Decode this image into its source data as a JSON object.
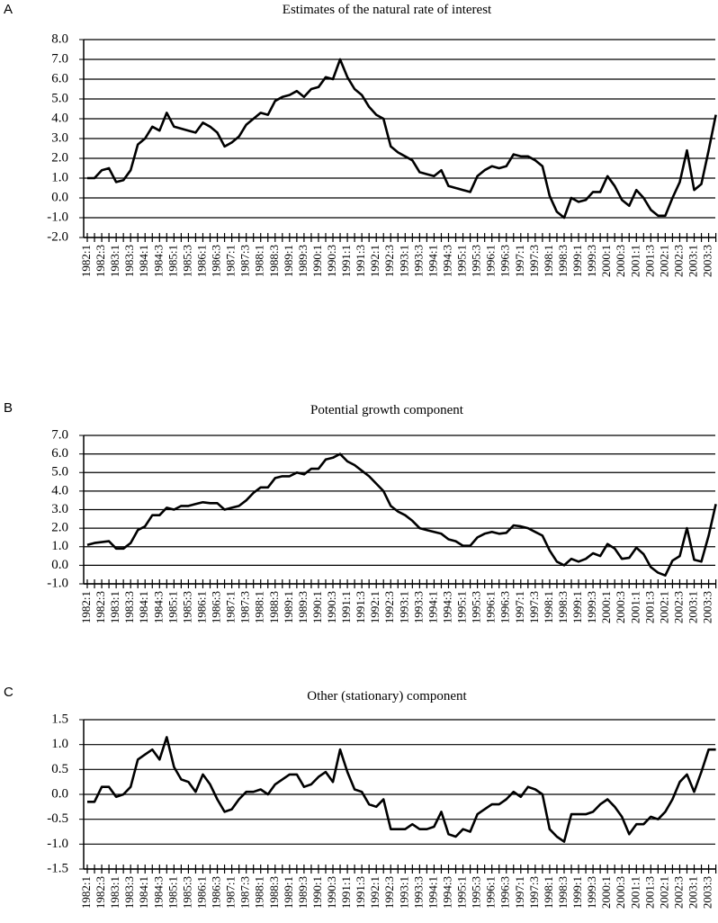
{
  "chart_data": [
    {
      "type": "line",
      "panel_label": "A",
      "title": "Estimates of the natural rate of interest",
      "color": "#000000",
      "grid": true,
      "categories": [
        "1982:1",
        null,
        "1982:3",
        null,
        "1983:1",
        null,
        "1983:3",
        null,
        "1984:1",
        null,
        "1984:3",
        null,
        "1985:1",
        null,
        "1985:3",
        null,
        "1986:1",
        null,
        "1986:3",
        null,
        "1987:1",
        null,
        "1987:3",
        null,
        "1988:1",
        null,
        "1988:3",
        null,
        "1989:1",
        null,
        "1989:3",
        null,
        "1990:1",
        null,
        "1990:3",
        null,
        "1991:1",
        null,
        "1991:3",
        null,
        "1992:1",
        null,
        "1992:3",
        null,
        "1993:1",
        null,
        "1993:3",
        null,
        "1994:1",
        null,
        "1994:3",
        null,
        "1995:1",
        null,
        "1995:3",
        null,
        "1996:1",
        null,
        "1996:3",
        null,
        "1997:1",
        null,
        "1997:3",
        null,
        "1998:1",
        null,
        "1998:3",
        null,
        "1999:1",
        null,
        "1999:3",
        null,
        "2000:1",
        null,
        "2000:3",
        null,
        "2001:1",
        null,
        "2001:3",
        null,
        "2002:1",
        null,
        "2002:3",
        null,
        "2003:1",
        null,
        "2003:3",
        null
      ],
      "values": [
        1.0,
        1.0,
        1.4,
        1.5,
        0.8,
        0.9,
        1.4,
        2.7,
        3.0,
        3.6,
        3.4,
        4.3,
        3.6,
        3.5,
        3.4,
        3.3,
        3.8,
        3.6,
        3.3,
        2.6,
        2.8,
        3.1,
        3.7,
        4.0,
        4.3,
        4.2,
        4.9,
        5.1,
        5.2,
        5.4,
        5.1,
        5.5,
        5.6,
        6.1,
        6.0,
        7.0,
        6.1,
        5.5,
        5.2,
        4.6,
        4.2,
        4.0,
        2.6,
        2.3,
        2.1,
        1.9,
        1.3,
        1.2,
        1.1,
        1.4,
        0.6,
        0.5,
        0.4,
        0.3,
        1.1,
        1.4,
        1.6,
        1.5,
        1.6,
        2.2,
        2.1,
        2.1,
        1.9,
        1.6,
        0.1,
        -0.7,
        -1.0,
        0.0,
        -0.2,
        -0.1,
        0.3,
        0.3,
        1.1,
        0.6,
        -0.1,
        -0.4,
        0.4,
        0.0,
        -0.6,
        -0.9,
        -0.9,
        0.0,
        0.8,
        2.4,
        0.4,
        0.7,
        2.4,
        4.2
      ],
      "ylim": [
        -2,
        8
      ],
      "yticks": [
        {
          "value": -2,
          "label": "-2.0"
        },
        {
          "value": -1,
          "label": "-1.0"
        },
        {
          "value": 0,
          "label": "0.0"
        },
        {
          "value": 1,
          "label": "1.0"
        },
        {
          "value": 2,
          "label": "2.0"
        },
        {
          "value": 3,
          "label": "3.0"
        },
        {
          "value": 4,
          "label": "4.0"
        },
        {
          "value": 5,
          "label": "5.0"
        },
        {
          "value": 6,
          "label": "6.0"
        },
        {
          "value": 7,
          "label": "7.0"
        },
        {
          "value": 8,
          "label": "8.0"
        }
      ]
    },
    {
      "type": "line",
      "panel_label": "B",
      "title": "Potential growth component",
      "color": "#000000",
      "grid": true,
      "categories": [
        "1982:1",
        null,
        "1982:3",
        null,
        "1983:1",
        null,
        "1983:3",
        null,
        "1984:1",
        null,
        "1984:3",
        null,
        "1985:1",
        null,
        "1985:3",
        null,
        "1986:1",
        null,
        "1986:3",
        null,
        "1987:1",
        null,
        "1987:3",
        null,
        "1988:1",
        null,
        "1988:3",
        null,
        "1989:1",
        null,
        "1989:3",
        null,
        "1990:1",
        null,
        "1990:3",
        null,
        "1991:1",
        null,
        "1991:3",
        null,
        "1992:1",
        null,
        "1992:3",
        null,
        "1993:1",
        null,
        "1993:3",
        null,
        "1994:1",
        null,
        "1994:3",
        null,
        "1995:1",
        null,
        "1995:3",
        null,
        "1996:1",
        null,
        "1996:3",
        null,
        "1997:1",
        null,
        "1997:3",
        null,
        "1998:1",
        null,
        "1998:3",
        null,
        "1999:1",
        null,
        "1999:3",
        null,
        "2000:1",
        null,
        "2000:3",
        null,
        "2001:1",
        null,
        "2001:3",
        null,
        "2002:1",
        null,
        "2002:3",
        null,
        "2003:1",
        null,
        "2003:3",
        null
      ],
      "values": [
        1.1,
        1.2,
        1.25,
        1.3,
        0.9,
        0.9,
        1.2,
        1.9,
        2.1,
        2.7,
        2.7,
        3.1,
        3.0,
        3.2,
        3.2,
        3.3,
        3.4,
        3.35,
        3.35,
        3.0,
        3.1,
        3.2,
        3.5,
        3.9,
        4.2,
        4.2,
        4.7,
        4.8,
        4.8,
        5.0,
        4.9,
        5.2,
        5.2,
        5.7,
        5.8,
        6.0,
        5.6,
        5.4,
        5.1,
        4.8,
        4.4,
        4.0,
        3.2,
        2.9,
        2.7,
        2.4,
        2.0,
        1.9,
        1.8,
        1.7,
        1.4,
        1.3,
        1.05,
        1.05,
        1.5,
        1.7,
        1.8,
        1.7,
        1.75,
        2.15,
        2.1,
        2.0,
        1.8,
        1.6,
        0.8,
        0.2,
        0.0,
        0.35,
        0.2,
        0.35,
        0.65,
        0.5,
        1.15,
        0.9,
        0.35,
        0.4,
        0.95,
        0.6,
        -0.1,
        -0.4,
        -0.55,
        0.25,
        0.5,
        2.0,
        0.3,
        0.2,
        1.6,
        3.3
      ],
      "ylim": [
        -1,
        7
      ],
      "yticks": [
        {
          "value": -1,
          "label": "-1.0"
        },
        {
          "value": 0,
          "label": "0.0"
        },
        {
          "value": 1,
          "label": "1.0"
        },
        {
          "value": 2,
          "label": "2.0"
        },
        {
          "value": 3,
          "label": "3.0"
        },
        {
          "value": 4,
          "label": "4.0"
        },
        {
          "value": 5,
          "label": "5.0"
        },
        {
          "value": 6,
          "label": "6.0"
        },
        {
          "value": 7,
          "label": "7.0"
        }
      ]
    },
    {
      "type": "line",
      "panel_label": "C",
      "title": "Other (stationary) component",
      "color": "#000000",
      "grid": true,
      "categories": [
        "1982:1",
        null,
        "1982:3",
        null,
        "1983:1",
        null,
        "1983:3",
        null,
        "1984:1",
        null,
        "1984:3",
        null,
        "1985:1",
        null,
        "1985:3",
        null,
        "1986:1",
        null,
        "1986:3",
        null,
        "1987:1",
        null,
        "1987:3",
        null,
        "1988:1",
        null,
        "1988:3",
        null,
        "1989:1",
        null,
        "1989:3",
        null,
        "1990:1",
        null,
        "1990:3",
        null,
        "1991:1",
        null,
        "1991:3",
        null,
        "1992:1",
        null,
        "1992:3",
        null,
        "1993:1",
        null,
        "1993:3",
        null,
        "1994:1",
        null,
        "1994:3",
        null,
        "1995:1",
        null,
        "1995:3",
        null,
        "1996:1",
        null,
        "1996:3",
        null,
        "1997:1",
        null,
        "1997:3",
        null,
        "1998:1",
        null,
        "1998:3",
        null,
        "1999:1",
        null,
        "1999:3",
        null,
        "2000:1",
        null,
        "2000:3",
        null,
        "2001:1",
        null,
        "2001:3",
        null,
        "2002:1",
        null,
        "2002:3",
        null,
        "2003:1",
        null,
        "2003:3",
        null
      ],
      "values": [
        -0.15,
        -0.15,
        0.15,
        0.15,
        -0.05,
        0.0,
        0.15,
        0.7,
        0.8,
        0.9,
        0.7,
        1.15,
        0.55,
        0.3,
        0.25,
        0.05,
        0.4,
        0.2,
        -0.1,
        -0.35,
        -0.3,
        -0.1,
        0.05,
        0.05,
        0.1,
        0.0,
        0.2,
        0.3,
        0.4,
        0.4,
        0.15,
        0.2,
        0.35,
        0.45,
        0.25,
        0.9,
        0.45,
        0.1,
        0.05,
        -0.2,
        -0.25,
        -0.1,
        -0.7,
        -0.7,
        -0.7,
        -0.6,
        -0.7,
        -0.7,
        -0.65,
        -0.35,
        -0.8,
        -0.85,
        -0.7,
        -0.75,
        -0.4,
        -0.3,
        -0.2,
        -0.2,
        -0.1,
        0.05,
        -0.05,
        0.15,
        0.1,
        0.0,
        -0.7,
        -0.85,
        -0.95,
        -0.4,
        -0.4,
        -0.4,
        -0.35,
        -0.2,
        -0.1,
        -0.25,
        -0.45,
        -0.8,
        -0.6,
        -0.6,
        -0.45,
        -0.5,
        -0.35,
        -0.1,
        0.25,
        0.4,
        0.05,
        0.45,
        0.9,
        0.9
      ],
      "ylim": [
        -1.5,
        1.5
      ],
      "yticks": [
        {
          "value": -1.5,
          "label": "-1.5"
        },
        {
          "value": -1,
          "label": "-1.0"
        },
        {
          "value": -0.5,
          "label": "-0.5"
        },
        {
          "value": 0,
          "label": "0.0"
        },
        {
          "value": 0.5,
          "label": "0.5"
        },
        {
          "value": 1,
          "label": "1.0"
        },
        {
          "value": 1.5,
          "label": "1.5"
        }
      ]
    }
  ]
}
